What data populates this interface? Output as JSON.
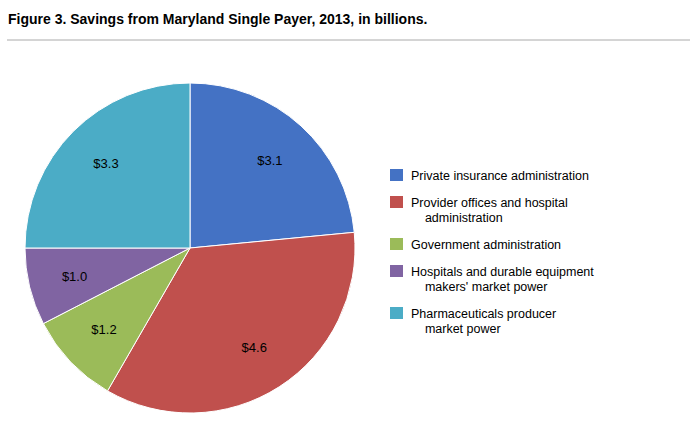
{
  "chart_data": {
    "type": "pie",
    "title": "Figure 3. Savings from Maryland Single Payer, 2013, in billions.",
    "categories": [
      "Private insurance administration",
      "Provider offices and hospital\n    administration",
      "Government administration",
      "Hospitals and durable equipment\n    makers' market power",
      "Pharmaceuticals producer\n    market power"
    ],
    "values": [
      3.1,
      4.6,
      1.2,
      1.0,
      3.3
    ],
    "value_labels": [
      "$3.1",
      "$4.6",
      "$1.2",
      "$1.0",
      "$3.3"
    ],
    "colors": [
      "#4472C4",
      "#C0504D",
      "#9BBB59",
      "#8064A2",
      "#4BACC6"
    ],
    "data_labels": true,
    "legend": "right"
  }
}
